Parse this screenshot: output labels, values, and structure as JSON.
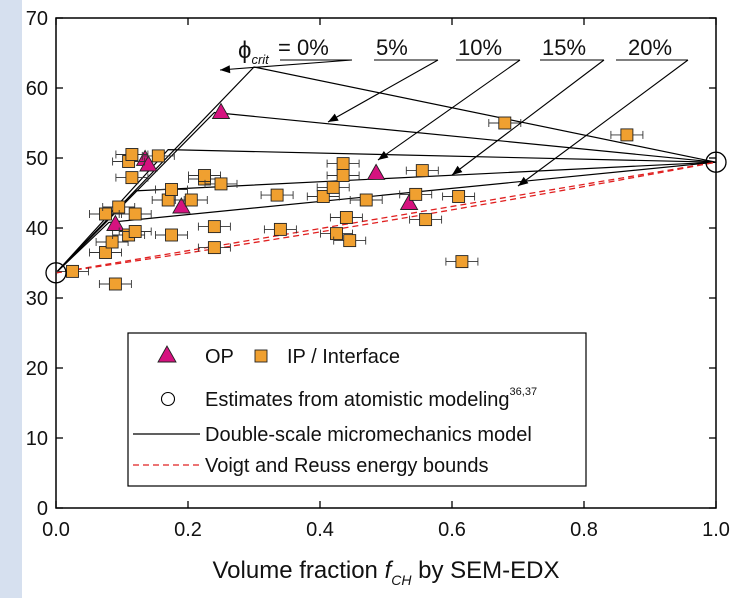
{
  "chart_data": {
    "type": "scatter",
    "xlabel": "Volume fraction",
    "xlabel_symbol": "f",
    "xlabel_symbol_sub": "CH",
    "xlabel_suffix": "by SEM-EDX",
    "ylabel": "",
    "xlim": [
      0,
      1
    ],
    "ylim": [
      0,
      70
    ],
    "x_ticks": [
      "0.0",
      "0.2",
      "0.4",
      "0.6",
      "0.8",
      "1.0"
    ],
    "y_ticks": [
      "0",
      "10",
      "20",
      "30",
      "40",
      "50",
      "60",
      "70"
    ],
    "grid": false,
    "legend_position": "bottom-center",
    "legend": [
      {
        "symbol": "triangle",
        "label": "OP",
        "color": "#d5127f"
      },
      {
        "symbol": "square",
        "label": "IP / Interface",
        "color": "#f0a030"
      },
      {
        "symbol": "circle",
        "label": "Estimates from atomistic modeling",
        "superscript": "36,37"
      },
      {
        "symbol": "line",
        "label": "Double-scale micromechanics model",
        "color": "#000000"
      },
      {
        "symbol": "dashed",
        "label": "Voigt and Reuss energy bounds",
        "color": "#e02020"
      }
    ],
    "annotations": {
      "phi_symbol": "ϕ",
      "phi_sub": "crit",
      "labels": [
        "= 0%",
        "5%",
        "10%",
        "15%",
        "20%"
      ]
    },
    "series": [
      {
        "name": "OP",
        "marker": "triangle",
        "color": "#d5127f",
        "points": [
          {
            "x": 0.09,
            "y": 40.5
          },
          {
            "x": 0.135,
            "y": 49.8
          },
          {
            "x": 0.14,
            "y": 49.0
          },
          {
            "x": 0.19,
            "y": 43.0
          },
          {
            "x": 0.25,
            "y": 56.5
          },
          {
            "x": 0.485,
            "y": 47.8
          },
          {
            "x": 0.535,
            "y": 43.5
          }
        ]
      },
      {
        "name": "IP / Interface",
        "marker": "square",
        "color": "#f0a030",
        "points": [
          {
            "x": 0.025,
            "y": 33.8
          },
          {
            "x": 0.075,
            "y": 42.0
          },
          {
            "x": 0.075,
            "y": 36.5
          },
          {
            "x": 0.085,
            "y": 38.0
          },
          {
            "x": 0.095,
            "y": 43.0
          },
          {
            "x": 0.09,
            "y": 32.0
          },
          {
            "x": 0.11,
            "y": 39.0
          },
          {
            "x": 0.115,
            "y": 47.2
          },
          {
            "x": 0.11,
            "y": 49.5
          },
          {
            "x": 0.115,
            "y": 50.5
          },
          {
            "x": 0.12,
            "y": 42.0
          },
          {
            "x": 0.12,
            "y": 39.5
          },
          {
            "x": 0.155,
            "y": 50.3
          },
          {
            "x": 0.17,
            "y": 44.0
          },
          {
            "x": 0.175,
            "y": 39.0
          },
          {
            "x": 0.175,
            "y": 45.5
          },
          {
            "x": 0.205,
            "y": 44.0
          },
          {
            "x": 0.225,
            "y": 47.0
          },
          {
            "x": 0.225,
            "y": 47.5
          },
          {
            "x": 0.24,
            "y": 40.2
          },
          {
            "x": 0.24,
            "y": 37.2
          },
          {
            "x": 0.25,
            "y": 46.3
          },
          {
            "x": 0.335,
            "y": 44.7
          },
          {
            "x": 0.34,
            "y": 39.8
          },
          {
            "x": 0.405,
            "y": 44.5
          },
          {
            "x": 0.42,
            "y": 45.8
          },
          {
            "x": 0.425,
            "y": 39.2
          },
          {
            "x": 0.435,
            "y": 49.2
          },
          {
            "x": 0.435,
            "y": 47.5
          },
          {
            "x": 0.44,
            "y": 41.5
          },
          {
            "x": 0.445,
            "y": 38.2
          },
          {
            "x": 0.47,
            "y": 44.0
          },
          {
            "x": 0.545,
            "y": 44.8
          },
          {
            "x": 0.555,
            "y": 48.2
          },
          {
            "x": 0.56,
            "y": 41.2
          },
          {
            "x": 0.61,
            "y": 44.5
          },
          {
            "x": 0.615,
            "y": 35.2
          },
          {
            "x": 0.68,
            "y": 55.0
          },
          {
            "x": 0.865,
            "y": 53.3
          }
        ]
      },
      {
        "name": "Estimates from atomistic modeling",
        "marker": "circle",
        "points": [
          {
            "x": 0.0,
            "y": 33.6
          },
          {
            "x": 1.0,
            "y": 49.4
          }
        ]
      }
    ],
    "model_lines": [
      {
        "label": "= 0%",
        "x": [
          0,
          0.3,
          1.0
        ],
        "y": [
          33.6,
          63.0,
          49.4
        ]
      },
      {
        "label": "5%",
        "x": [
          0,
          0.24,
          1.0
        ],
        "y": [
          33.6,
          56.5,
          49.4
        ]
      },
      {
        "label": "10%",
        "x": [
          0,
          0.17,
          1.0
        ],
        "y": [
          33.6,
          51.2,
          49.4
        ]
      },
      {
        "label": "15%",
        "x": [
          0,
          0.12,
          1.0
        ],
        "y": [
          33.6,
          45.3,
          49.4
        ]
      },
      {
        "label": "20%",
        "x": [
          0,
          0.08,
          1.0
        ],
        "y": [
          33.6,
          40.8,
          49.4
        ]
      }
    ],
    "bounds": [
      {
        "label": "Voigt",
        "x": [
          0,
          1.0
        ],
        "y": [
          33.6,
          49.4
        ]
      },
      {
        "label": "Reuss",
        "x": [
          0,
          1.0
        ],
        "y": [
          33.6,
          49.4
        ],
        "curvature": 0.12
      }
    ]
  }
}
